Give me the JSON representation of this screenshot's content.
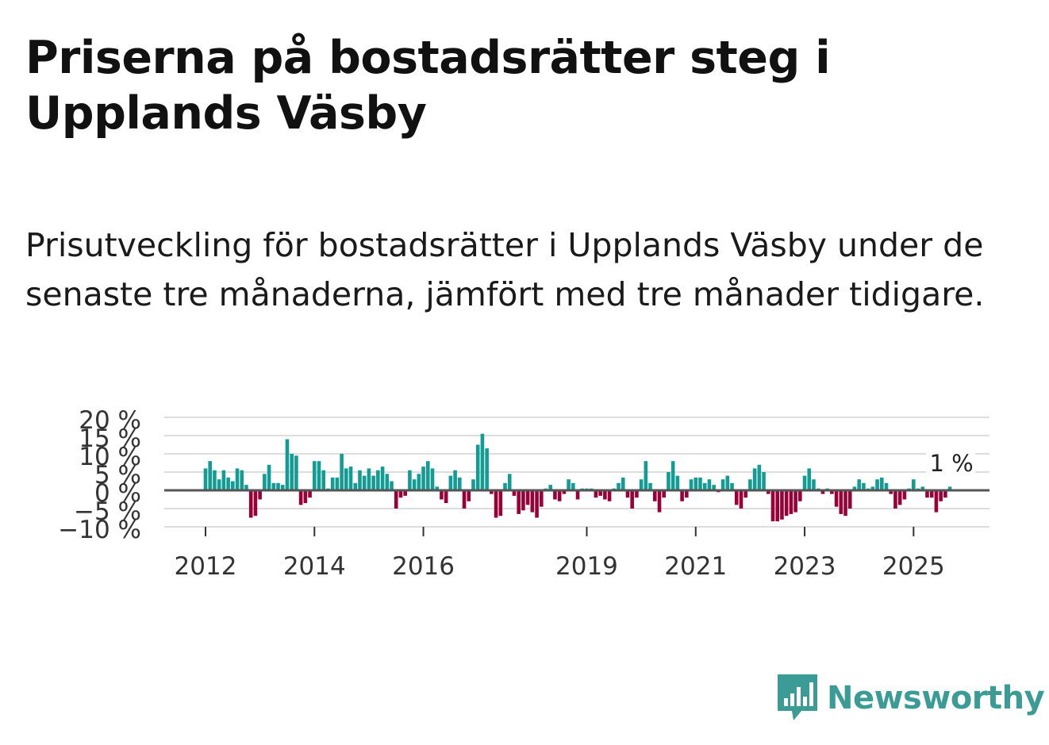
{
  "header": {
    "title": "Priserna på bostadsrätter steg i Upplands Väsby",
    "subtitle": "Prisutveckling för bostadsrätter i Upplands Väsby under de senaste tre månaderna, jämfört med tre månader tidigare."
  },
  "brand": {
    "name": "Newsworthy",
    "icon": "newsworthy-logo-icon",
    "color": "#3a9c94"
  },
  "colors": {
    "positive": "#139c94",
    "negative": "#9a0038",
    "grid": "#dddddd",
    "zero_line": "#555555"
  },
  "chart_data": {
    "type": "bar",
    "title": "",
    "xlabel": "",
    "ylabel": "",
    "ylim": [
      -10,
      20
    ],
    "y_ticks": [
      20,
      15,
      10,
      5,
      0,
      -5,
      -10
    ],
    "y_tick_labels": [
      "20 %",
      "15 %",
      "10 %",
      "5 %",
      "0 %",
      "−5 %",
      "−10 %"
    ],
    "x_ticks": [
      {
        "label": "2012",
        "index": 0
      },
      {
        "label": "2014",
        "index": 24
      },
      {
        "label": "2016",
        "index": 48
      },
      {
        "label": "2019",
        "index": 84
      },
      {
        "label": "2021",
        "index": 108
      },
      {
        "label": "2023",
        "index": 132
      },
      {
        "label": "2025",
        "index": 156
      }
    ],
    "annotation": {
      "text": "1 %",
      "index": 164
    },
    "series": [
      {
        "name": "Prisutveckling",
        "start": "2011-12",
        "values": [
          6,
          8,
          5.5,
          3,
          5.5,
          3.5,
          2.5,
          6,
          5.5,
          1.5,
          -7.5,
          -7,
          -2.5,
          4.5,
          7,
          2,
          2,
          1.5,
          14,
          10,
          9.5,
          -4,
          -3.5,
          -2,
          8,
          8,
          5.5,
          0.5,
          3.5,
          3.5,
          10,
          6,
          6.5,
          2,
          5.5,
          4,
          6,
          4,
          5.5,
          6.5,
          4.5,
          2.5,
          -5,
          -2,
          -1.5,
          5.5,
          3,
          4.5,
          6.5,
          8,
          6,
          1,
          -2.5,
          -3.5,
          4,
          5.5,
          3.5,
          -5,
          -3,
          3,
          12.5,
          15.5,
          11.5,
          -1,
          -7.5,
          -7,
          2,
          4.5,
          -1.5,
          -6.5,
          -5.5,
          -4,
          -6,
          -7.5,
          -4.5,
          0.5,
          1.5,
          -2.5,
          -3,
          -1,
          3,
          2,
          -2.5,
          0.5,
          0.5,
          0.5,
          -2,
          -1.5,
          -2.5,
          -3,
          0.5,
          2,
          3.5,
          -2,
          -5,
          -2,
          3,
          8,
          2,
          -3,
          -6,
          -2,
          5,
          8,
          4,
          -3,
          -2,
          3,
          3.5,
          3.5,
          2,
          3,
          1.5,
          -0.5,
          3,
          4,
          2,
          -4,
          -5,
          -2,
          3,
          6,
          7,
          5,
          -1,
          -8.5,
          -8.5,
          -8,
          -7,
          -6.5,
          -6,
          -3,
          4,
          6,
          3,
          0.5,
          -1,
          0.5,
          -1,
          -4.5,
          -6.5,
          -7,
          -5,
          1,
          3,
          2,
          0.5,
          1,
          3,
          3.5,
          2,
          -1,
          -5,
          -4,
          -2.5,
          0.5,
          3,
          0.5,
          1,
          -2,
          -2,
          -6,
          -3,
          -2,
          1
        ]
      }
    ]
  }
}
